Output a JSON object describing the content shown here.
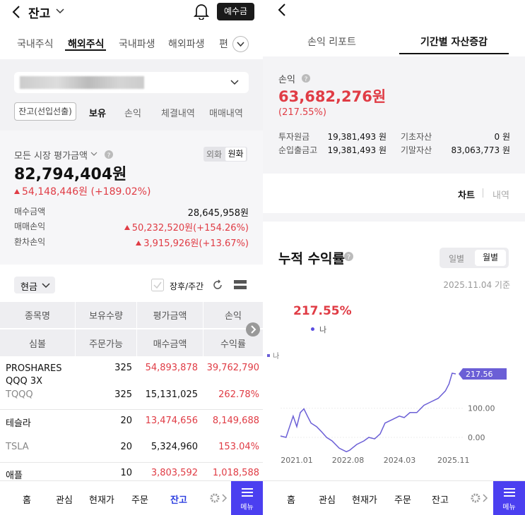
{
  "left": {
    "header": {
      "title": "잔고",
      "button": "예수금"
    },
    "tabs": [
      "국내주식",
      "해외주식",
      "국내파생",
      "해외파생",
      "편"
    ],
    "sub_tabs": [
      "잔고(선입선출)",
      "보유",
      "손익",
      "체결내역",
      "매매내역"
    ],
    "summary": {
      "label": "모든 시장 평가금액",
      "currency_toggle": [
        "외화",
        "원화"
      ],
      "total": "82,794,404원",
      "change": "54,148,446원 (+189.02%)",
      "rows": [
        [
          "매수금액",
          "28,645,958원"
        ],
        [
          "매매손익",
          "50,232,520원(+154.26%)"
        ],
        [
          "환차손익",
          "3,915,926원(+13.67%)"
        ]
      ]
    },
    "filter": {
      "dropdown": "현금",
      "checkbox": "장후/주간"
    },
    "table": {
      "header_top": [
        "종목명",
        "보유수량",
        "평가금액",
        "손익"
      ],
      "header_bottom": [
        "심볼",
        "주문가능",
        "매수금액",
        "수익률"
      ],
      "rows": [
        {
          "name": "PROSHARES QQQ 3X",
          "symbol": "TQQQ",
          "qty": "325",
          "orderable": "325",
          "eval": "54,893,878",
          "buy": "15,131,025",
          "pl": "39,762,790",
          "rate": "262.78%"
        },
        {
          "name": "테슬라",
          "symbol": "TSLA",
          "qty": "20",
          "orderable": "20",
          "eval": "13,474,656",
          "buy": "5,324,960",
          "pl": "8,149,688",
          "rate": "153.04%"
        },
        {
          "name": "애플",
          "qty": "10",
          "eval": "3,803,592",
          "pl": "1,018,588"
        }
      ]
    },
    "nav": [
      "홈",
      "관심",
      "현재가",
      "주문",
      "잔고"
    ],
    "menu": "메뉴"
  },
  "right": {
    "tabs": [
      "손익 리포트",
      "기간별 자산증감"
    ],
    "pl": {
      "label": "손익",
      "amount": "63,682,276원",
      "rate": "(217.55%)",
      "rows": [
        [
          "투자원금",
          "19,381,493 원",
          "기초자산",
          "0 원"
        ],
        [
          "순입출금고",
          "19,381,493 원",
          "기말자산",
          "83,063,773 원"
        ]
      ]
    },
    "view_tabs": [
      "차트",
      "내역"
    ],
    "chart_card": {
      "title": "누적 수익률",
      "toggle": [
        "일별",
        "월별"
      ],
      "date": "2025.11.04 기준",
      "headline": "217.55%",
      "headline_legend": "나"
    },
    "nav": [
      "홈",
      "관심",
      "현재가",
      "주문",
      "잔고"
    ],
    "menu": "메뉴"
  },
  "chart_data": {
    "type": "line",
    "x": [
      2020.5,
      2020.67,
      2020.78,
      2020.89,
      2021.0,
      2021.11,
      2021.22,
      2021.33,
      2021.44,
      2021.61,
      2021.76,
      2021.92,
      2022.09,
      2022.31,
      2022.53,
      2022.63,
      2022.85,
      2023.07,
      2023.22,
      2023.4,
      2023.57,
      2023.72,
      2023.94,
      2024.16,
      2024.31,
      2024.49,
      2024.7,
      2024.92,
      2025.14,
      2025.36,
      2025.58,
      2025.69,
      2025.79,
      2025.9
    ],
    "series": [
      {
        "name": "나",
        "color": "#6b5fd6",
        "values": [
          5,
          0,
          37,
          73,
          37,
          85,
          98,
          73,
          49,
          37,
          20,
          0,
          -12,
          -37,
          -49,
          -44,
          -24,
          -12,
          0,
          -5,
          12,
          49,
          61,
          73,
          68,
          85,
          85,
          110,
          122,
          134,
          159,
          183,
          220,
          217.56
        ]
      }
    ],
    "xlim": [
      2020.5,
      2025.9
    ],
    "ylim": [
      -70,
      290
    ],
    "xticks": [
      {
        "value": 2021.0,
        "label": "2021.01"
      },
      {
        "value": 2022.58,
        "label": "2022.08"
      },
      {
        "value": 2024.17,
        "label": "2024.03"
      },
      {
        "value": 2025.83,
        "label": "2025.11"
      }
    ],
    "yticks": [
      {
        "value": 0,
        "label": "0.00"
      },
      {
        "value": 100,
        "label": "100.00"
      }
    ],
    "grid": true
  }
}
